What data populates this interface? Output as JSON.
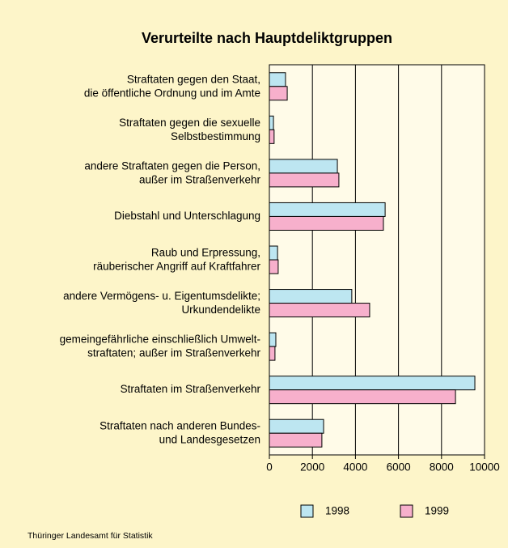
{
  "chart_data": {
    "type": "bar",
    "orientation": "horizontal",
    "title": "Verurteilte nach Hauptdeliktgruppen",
    "source": "Thüringer Landesamt für Statistik",
    "categories": [
      "Straftaten gegen den Staat,\ndie öffentliche Ordnung und im Amte",
      "Straftaten gegen die sexuelle\nSelbstbestimmung",
      "andere Straftaten gegen die Person,\naußer im Straßenverkehr",
      "Diebstahl und Unterschlagung",
      "Raub und Erpressung,\nräuberischer Angriff auf Kraftfahrer",
      "andere Vermögens- u. Eigentumsdelikte;\nUrkundendelikte",
      "gemeingefährliche einschließlich Umwelt-\nstraftaten; außer im Straßenverkehr",
      "Straftaten im Straßenverkehr",
      "Straftaten nach anderen Bundes-\nund Landesgesetzen"
    ],
    "series": [
      {
        "name": "1998",
        "color": "#bde6f1",
        "values": [
          750,
          190,
          3160,
          5380,
          380,
          3830,
          300,
          9550,
          2520
        ]
      },
      {
        "name": "1999",
        "color": "#f7b0cc",
        "values": [
          830,
          220,
          3230,
          5300,
          410,
          4660,
          260,
          8650,
          2440
        ]
      }
    ],
    "xlim": [
      0,
      10000
    ],
    "xticks": [
      0,
      2000,
      4000,
      6000,
      8000,
      10000
    ],
    "grid": true
  }
}
